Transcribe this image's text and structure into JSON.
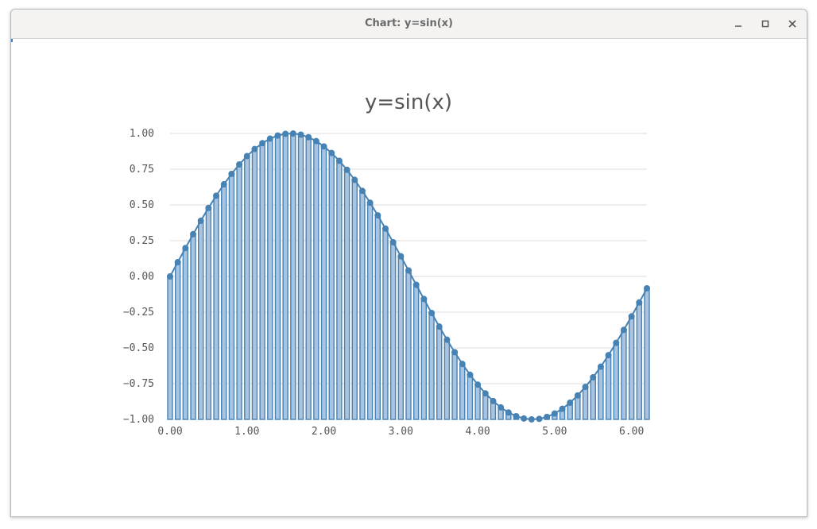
{
  "window": {
    "title": "Chart: y=sin(x)"
  },
  "colors": {
    "bar_fill": "#a9c4e0",
    "bar_stroke": "#4682b4",
    "line": "#4682b4",
    "grid": "#dddddd"
  },
  "chart_data": {
    "type": "bar",
    "title": "y=sin(x)",
    "xlabel": "",
    "ylabel": "",
    "x_start": 0.0,
    "x_step": 0.1,
    "x": [
      0.0,
      0.1,
      0.2,
      0.3,
      0.4,
      0.5,
      0.6,
      0.7,
      0.8,
      0.9,
      1.0,
      1.1,
      1.2,
      1.3,
      1.4,
      1.5,
      1.6,
      1.7,
      1.8,
      1.9,
      2.0,
      2.1,
      2.2,
      2.3,
      2.4,
      2.5,
      2.6,
      2.7,
      2.8,
      2.9,
      3.0,
      3.1,
      3.2,
      3.3,
      3.4,
      3.5,
      3.6,
      3.7,
      3.8,
      3.9,
      4.0,
      4.1,
      4.2,
      4.3,
      4.4,
      4.5,
      4.6,
      4.7,
      4.8,
      4.9,
      5.0,
      5.1,
      5.2,
      5.3,
      5.4,
      5.5,
      5.6,
      5.7,
      5.8,
      5.9,
      6.0,
      6.1,
      6.2
    ],
    "values": [
      0.0,
      0.0998,
      0.1987,
      0.2955,
      0.3894,
      0.4794,
      0.5646,
      0.6442,
      0.7174,
      0.7833,
      0.8415,
      0.8912,
      0.932,
      0.9636,
      0.9854,
      0.9975,
      0.9996,
      0.9917,
      0.9738,
      0.9463,
      0.9093,
      0.8632,
      0.8085,
      0.7457,
      0.6755,
      0.5985,
      0.5155,
      0.4274,
      0.335,
      0.2392,
      0.1411,
      0.0416,
      -0.0584,
      -0.1577,
      -0.2555,
      -0.3508,
      -0.4425,
      -0.5298,
      -0.6119,
      -0.6878,
      -0.7568,
      -0.8183,
      -0.8716,
      -0.9162,
      -0.9516,
      -0.9775,
      -0.9937,
      -0.9999,
      -0.9962,
      -0.9825,
      -0.9589,
      -0.9258,
      -0.8835,
      -0.8323,
      -0.7728,
      -0.7055,
      -0.6313,
      -0.5507,
      -0.4646,
      -0.3739,
      -0.2794,
      -0.1822,
      -0.0831
    ],
    "xlim": [
      0.0,
      6.2
    ],
    "ylim": [
      -1.0,
      1.0
    ],
    "x_ticks": [
      "0.00",
      "1.00",
      "2.00",
      "3.00",
      "4.00",
      "5.00",
      "6.00"
    ],
    "x_tick_values": [
      0,
      1,
      2,
      3,
      4,
      5,
      6
    ],
    "y_ticks": [
      "1.00",
      "0.75",
      "0.50",
      "0.25",
      "0.00",
      "−0.25",
      "−0.50",
      "−0.75",
      "−1.00"
    ],
    "y_tick_values": [
      1.0,
      0.75,
      0.5,
      0.25,
      0.0,
      -0.25,
      -0.5,
      -0.75,
      -1.0
    ],
    "grid": true,
    "legend": "none"
  }
}
